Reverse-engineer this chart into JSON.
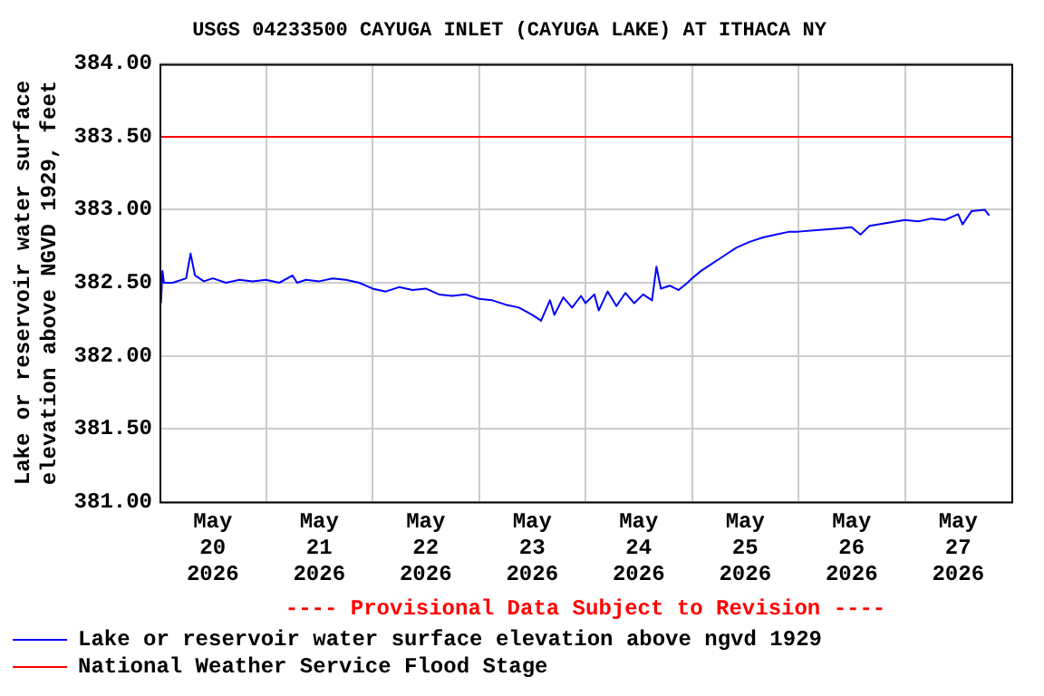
{
  "chart_data": {
    "type": "line",
    "title": "USGS 04233500 CAYUGA INLET (CAYUGA LAKE) AT ITHACA NY",
    "ylabel": "Lake or reservoir water surface\nelevation above NGVD 1929, feet",
    "annotations": [
      "---- Provisional Data Subject to Revision ----"
    ],
    "xlim": [
      "2026-05-20T00:00",
      "2026-05-28T00:00"
    ],
    "xticks": [
      {
        "value": "2026-05-20T12:00",
        "label": "May 20 2026"
      },
      {
        "value": "2026-05-21T00:00",
        "label": null
      },
      {
        "value": "2026-05-21T12:00",
        "label": "May 21 2026"
      },
      {
        "value": "2026-05-22T00:00",
        "label": null
      },
      {
        "value": "2026-05-22T12:00",
        "label": "May 22 2026"
      },
      {
        "value": "2026-05-23T00:00",
        "label": null
      },
      {
        "value": "2026-05-23T12:00",
        "label": "May 23 2026"
      },
      {
        "value": "2026-05-24T00:00",
        "label": null
      },
      {
        "value": "2026-05-24T12:00",
        "label": "May 24 2026"
      },
      {
        "value": "2026-05-25T00:00",
        "label": null
      },
      {
        "value": "2026-05-25T12:00",
        "label": "May 25 2026"
      },
      {
        "value": "2026-05-26T00:00",
        "label": null
      },
      {
        "value": "2026-05-26T12:00",
        "label": "May 26 2026"
      },
      {
        "value": "2026-05-27T00:00",
        "label": null
      },
      {
        "value": "2026-05-27T12:00",
        "label": "May 27 2026"
      }
    ],
    "ylim": [
      381,
      384
    ],
    "yticks": [
      {
        "value": 381,
        "label": "381.00"
      },
      {
        "value": 381.5,
        "label": "381.50"
      },
      {
        "value": 382,
        "label": "382.00"
      },
      {
        "value": 382.5,
        "label": "382.50"
      },
      {
        "value": 383,
        "label": "383.00"
      },
      {
        "value": 383.5,
        "label": "383.50"
      },
      {
        "value": 384,
        "label": "384.00"
      }
    ],
    "grid": true,
    "legend": "bottom",
    "marker": "none",
    "line_style": "solid",
    "series": [
      {
        "name": "Lake or reservoir water surface elevation above ngvd 1929",
        "color": "#0000ff",
        "x": [
          "2026-05-20T00:20",
          "2026-05-20T00:40",
          "2026-05-20T01:00",
          "2026-05-20T03:00",
          "2026-05-20T06:00",
          "2026-05-20T07:00",
          "2026-05-20T08:00",
          "2026-05-20T10:00",
          "2026-05-20T12:00",
          "2026-05-20T15:00",
          "2026-05-20T18:00",
          "2026-05-20T21:00",
          "2026-05-21T00:00",
          "2026-05-21T03:00",
          "2026-05-21T06:00",
          "2026-05-21T07:00",
          "2026-05-21T09:00",
          "2026-05-21T12:00",
          "2026-05-21T15:00",
          "2026-05-21T18:00",
          "2026-05-21T21:00",
          "2026-05-22T00:00",
          "2026-05-22T03:00",
          "2026-05-22T06:00",
          "2026-05-22T09:00",
          "2026-05-22T12:00",
          "2026-05-22T15:00",
          "2026-05-22T18:00",
          "2026-05-22T21:00",
          "2026-05-23T00:00",
          "2026-05-23T03:00",
          "2026-05-23T06:00",
          "2026-05-23T09:00",
          "2026-05-23T12:00",
          "2026-05-23T14:00",
          "2026-05-23T16:00",
          "2026-05-23T17:00",
          "2026-05-23T19:00",
          "2026-05-23T21:00",
          "2026-05-23T23:00",
          "2026-05-24T00:00",
          "2026-05-24T02:00",
          "2026-05-24T03:00",
          "2026-05-24T05:00",
          "2026-05-24T07:00",
          "2026-05-24T09:00",
          "2026-05-24T11:00",
          "2026-05-24T13:00",
          "2026-05-24T15:00",
          "2026-05-24T16:00",
          "2026-05-24T17:00",
          "2026-05-24T19:00",
          "2026-05-24T21:00",
          "2026-05-24T23:00",
          "2026-05-25T00:00",
          "2026-05-25T02:00",
          "2026-05-25T04:00",
          "2026-05-25T06:00",
          "2026-05-25T08:00",
          "2026-05-25T10:00",
          "2026-05-25T13:00",
          "2026-05-25T16:00",
          "2026-05-25T19:00",
          "2026-05-25T22:00",
          "2026-05-26T00:00",
          "2026-05-26T04:00",
          "2026-05-26T08:00",
          "2026-05-26T12:00",
          "2026-05-26T14:00",
          "2026-05-26T16:00",
          "2026-05-26T20:00",
          "2026-05-27T00:00",
          "2026-05-27T03:00",
          "2026-05-27T06:00",
          "2026-05-27T09:00",
          "2026-05-27T12:00",
          "2026-05-27T13:00",
          "2026-05-27T15:00",
          "2026-05-27T18:00",
          "2026-05-27T19:00"
        ],
        "values": [
          382.36,
          382.58,
          382.5,
          382.5,
          382.53,
          382.7,
          382.55,
          382.51,
          382.53,
          382.5,
          382.52,
          382.51,
          382.52,
          382.5,
          382.55,
          382.5,
          382.52,
          382.51,
          382.53,
          382.52,
          382.5,
          382.46,
          382.44,
          382.47,
          382.45,
          382.46,
          382.42,
          382.41,
          382.42,
          382.39,
          382.38,
          382.35,
          382.33,
          382.28,
          382.24,
          382.38,
          382.28,
          382.4,
          382.33,
          382.41,
          382.36,
          382.42,
          382.31,
          382.44,
          382.34,
          382.43,
          382.36,
          382.42,
          382.38,
          382.61,
          382.46,
          382.48,
          382.45,
          382.5,
          382.53,
          382.58,
          382.62,
          382.66,
          382.7,
          382.74,
          382.78,
          382.81,
          382.83,
          382.85,
          382.85,
          382.86,
          382.87,
          382.88,
          382.83,
          382.89,
          382.91,
          382.93,
          382.92,
          382.94,
          382.93,
          382.97,
          382.9,
          382.99,
          383.0,
          382.96
        ]
      },
      {
        "name": "National Weather Service Flood Stage",
        "color": "#ff0000",
        "x": [
          "2026-05-20T00:00",
          "2026-05-28T00:00"
        ],
        "values": [
          383.5,
          383.5
        ]
      }
    ]
  }
}
